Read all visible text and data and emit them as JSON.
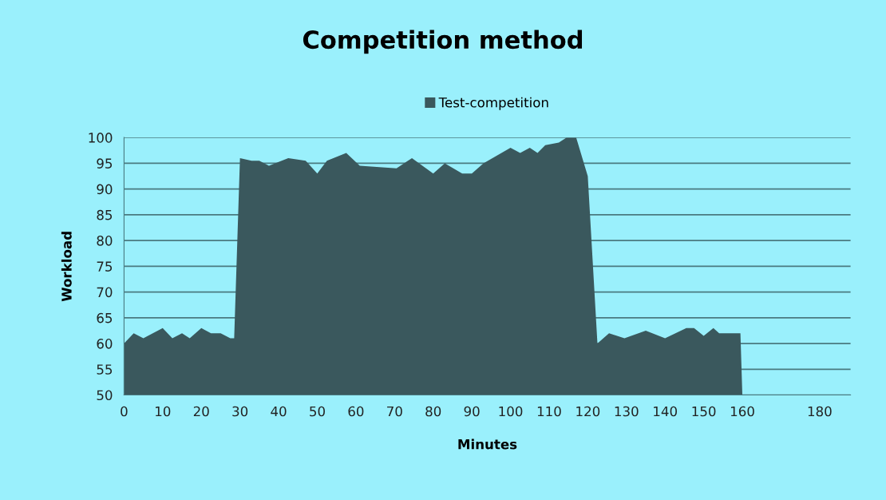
{
  "chart_data": {
    "type": "area",
    "title": "Competition method",
    "xlabel": "Minutes",
    "ylabel": "Workload",
    "x": [
      0,
      2.5,
      5,
      10,
      12.5,
      15,
      17,
      20,
      22.5,
      25,
      27.5,
      28.5,
      30,
      33,
      35,
      37.5,
      42.5,
      47,
      50,
      52.5,
      57.5,
      61,
      70.5,
      74.5,
      80,
      83,
      87.5,
      90,
      93,
      100,
      102.5,
      105,
      107,
      109,
      112.5,
      114.5,
      117,
      120,
      122.5,
      125.5,
      129.5,
      135,
      140,
      145.5,
      147.5,
      150,
      152.5,
      154,
      159.5,
      160,
      177.5,
      188
    ],
    "series": [
      {
        "name": "Test-competition",
        "color": "#3a585d",
        "values": [
          60,
          62,
          61,
          63,
          61,
          62,
          61,
          63,
          62,
          62,
          61,
          61,
          96,
          95.5,
          95.5,
          94.5,
          96,
          95.5,
          93,
          95.5,
          97,
          94.5,
          94,
          96,
          93,
          95,
          93,
          93,
          95,
          98,
          97,
          98,
          97,
          98.5,
          99,
          100,
          100,
          92.5,
          60,
          62,
          61,
          62.5,
          61,
          63,
          63,
          61.5,
          63,
          62,
          62,
          50,
          50,
          50
        ]
      }
    ],
    "xlim": [
      0,
      188
    ],
    "xticks": [
      0,
      10,
      20,
      30,
      40,
      50,
      60,
      70,
      80,
      90,
      100,
      110,
      120,
      130,
      140,
      150,
      160,
      180
    ],
    "ylim": [
      50,
      100
    ],
    "yticks": [
      50,
      55,
      60,
      65,
      70,
      75,
      80,
      85,
      90,
      95,
      100
    ],
    "grid": "y",
    "legend": "top"
  }
}
